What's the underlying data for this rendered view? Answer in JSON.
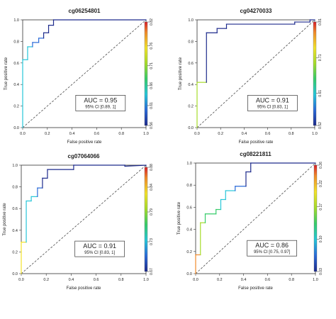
{
  "chart_data": [
    {
      "type": "line",
      "title": "cg06254801",
      "xlabel": "False positive rate",
      "ylabel": "True positive rate",
      "xlim": [
        0,
        1
      ],
      "ylim": [
        0,
        1
      ],
      "x_ticks": [
        "0.0",
        "0.2",
        "0.4",
        "0.6",
        "0.8",
        "1.0"
      ],
      "y_ticks": [
        "0.0",
        "0.2",
        "0.4",
        "0.6",
        "0.8",
        "1.0"
      ],
      "color_ticks": [
        "0.56",
        "0.61",
        "0.66",
        "0.71",
        "0.76",
        "0.82"
      ],
      "color_range": [
        0.56,
        0.82
      ],
      "auc_label": "AUC = 0.95",
      "ci_label": "95% CI [0.89, 1]",
      "roc": {
        "x": [
          0,
          0,
          0.04,
          0.04,
          0.08,
          0.08,
          0.13,
          0.13,
          0.17,
          0.17,
          0.21,
          0.21,
          0.25,
          0.25,
          1.0
        ],
        "y": [
          0,
          0.63,
          0.63,
          0.75,
          0.75,
          0.79,
          0.79,
          0.83,
          0.83,
          0.88,
          0.88,
          0.95,
          0.95,
          1.0,
          1.0
        ]
      }
    },
    {
      "type": "line",
      "title": "cg04270033",
      "xlabel": "False positive rate",
      "ylabel": "True positive rate",
      "xlim": [
        0,
        1
      ],
      "ylim": [
        0,
        1
      ],
      "x_ticks": [
        "0.0",
        "0.2",
        "0.4",
        "0.6",
        "0.8",
        "1.0"
      ],
      "y_ticks": [
        "0.0",
        "0.2",
        "0.4",
        "0.6",
        "0.8",
        "1.0"
      ],
      "color_ticks": [
        "0.52",
        "0.61",
        "0.71",
        "0.81"
      ],
      "color_range": [
        0.52,
        0.81
      ],
      "auc_label": "AUC = 0.91",
      "ci_label": "95% CI [0.83, 1]",
      "roc": {
        "x": [
          0,
          0,
          0.08,
          0.08,
          0.17,
          0.17,
          0.25,
          0.25,
          0.83,
          0.83,
          0.96,
          0.96,
          1.0
        ],
        "y": [
          0,
          0.42,
          0.42,
          0.88,
          0.88,
          0.92,
          0.92,
          0.96,
          0.96,
          0.98,
          0.98,
          1.0,
          1.0
        ]
      }
    },
    {
      "type": "line",
      "title": "cg07064066",
      "xlabel": "False positive rate",
      "ylabel": "True positive rate",
      "xlim": [
        0,
        1
      ],
      "ylim": [
        0,
        1
      ],
      "x_ticks": [
        "0.0",
        "0.2",
        "0.4",
        "0.6",
        "0.8",
        "1.0"
      ],
      "y_ticks": [
        "0.0",
        "0.2",
        "0.4",
        "0.6",
        "0.8",
        "1.0"
      ],
      "color_ticks": [
        "0.67",
        "0.73",
        "0.79",
        "0.84",
        "0.88"
      ],
      "color_range": [
        0.67,
        0.88
      ],
      "auc_label": "AUC = 0.91",
      "ci_label": "95% CI [0.83, 1]",
      "roc": {
        "x": [
          0,
          0,
          0.04,
          0.04,
          0.08,
          0.08,
          0.13,
          0.13,
          0.17,
          0.17,
          0.21,
          0.21,
          0.42,
          0.42,
          0.83,
          0.83,
          1.0
        ],
        "y": [
          0,
          0.29,
          0.29,
          0.67,
          0.67,
          0.71,
          0.71,
          0.79,
          0.79,
          0.88,
          0.88,
          0.96,
          0.96,
          1.0,
          1.0,
          0.99,
          1.0
        ]
      }
    },
    {
      "type": "line",
      "title": "cg08221811",
      "xlabel": "False positive rate",
      "ylabel": "True positive rate",
      "xlim": [
        0,
        1
      ],
      "ylim": [
        0,
        1
      ],
      "x_ticks": [
        "0.0",
        "0.2",
        "0.4",
        "0.6",
        "0.8",
        "1.0"
      ],
      "y_ticks": [
        "0.0",
        "0.2",
        "0.4",
        "0.6",
        "0.8",
        "1.0"
      ],
      "color_ticks": [
        "0.03",
        "0.10",
        "0.17",
        "0.22",
        "0.26"
      ],
      "color_range": [
        0.03,
        0.26
      ],
      "auc_label": "AUC = 0.86",
      "ci_label": "95% CI [0.75, 0.97]",
      "roc": {
        "x": [
          0,
          0,
          0.04,
          0.04,
          0.08,
          0.08,
          0.17,
          0.17,
          0.21,
          0.21,
          0.25,
          0.25,
          0.33,
          0.33,
          0.42,
          0.42,
          0.46,
          0.46,
          1.0
        ],
        "y": [
          0,
          0.17,
          0.17,
          0.46,
          0.46,
          0.54,
          0.54,
          0.58,
          0.58,
          0.67,
          0.67,
          0.75,
          0.75,
          0.79,
          0.79,
          0.92,
          0.92,
          1.0,
          1.0
        ]
      }
    }
  ]
}
